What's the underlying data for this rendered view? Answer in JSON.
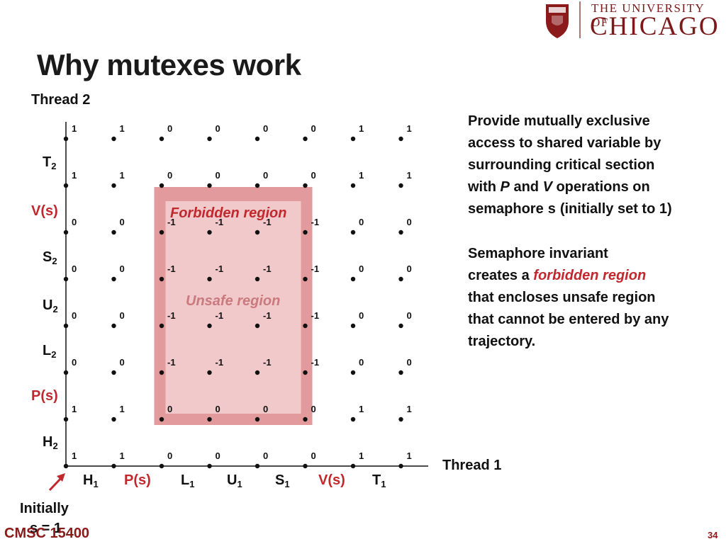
{
  "header": {
    "title": "Why mutexes work",
    "university_top": "THE UNIVERSITY OF",
    "university_main": "CHICAGO"
  },
  "chart_data": {
    "type": "progress_graph",
    "x_axis_label": "Thread 1",
    "y_axis_label": "Thread 2",
    "x_ticks": [
      {
        "base": "H",
        "sub": "1",
        "color": "#111111"
      },
      {
        "base": "P(s)",
        "sub": "",
        "color": "#c0282d"
      },
      {
        "base": "L",
        "sub": "1",
        "color": "#111111"
      },
      {
        "base": "U",
        "sub": "1",
        "color": "#111111"
      },
      {
        "base": "S",
        "sub": "1",
        "color": "#111111"
      },
      {
        "base": "V(s)",
        "sub": "",
        "color": "#c0282d"
      },
      {
        "base": "T",
        "sub": "1",
        "color": "#111111"
      }
    ],
    "y_ticks": [
      {
        "base": "H",
        "sub": "2",
        "color": "#111111"
      },
      {
        "base": "P(s)",
        "sub": "",
        "color": "#c0282d"
      },
      {
        "base": "L",
        "sub": "2",
        "color": "#111111"
      },
      {
        "base": "U",
        "sub": "2",
        "color": "#111111"
      },
      {
        "base": "S",
        "sub": "2",
        "color": "#111111"
      },
      {
        "base": "V(s)",
        "sub": "",
        "color": "#c0282d"
      },
      {
        "base": "T",
        "sub": "2",
        "color": "#111111"
      }
    ],
    "grid_values": [
      [
        "1",
        "1",
        "0",
        "0",
        "0",
        "0",
        "1",
        "1"
      ],
      [
        "1",
        "1",
        "0",
        "0",
        "0",
        "0",
        "1",
        "1"
      ],
      [
        "0",
        "0",
        "-1",
        "-1",
        "-1",
        "-1",
        "0",
        "0"
      ],
      [
        "0",
        "0",
        "-1",
        "-1",
        "-1",
        "-1",
        "0",
        "0"
      ],
      [
        "0",
        "0",
        "-1",
        "-1",
        "-1",
        "-1",
        "0",
        "0"
      ],
      [
        "0",
        "0",
        "-1",
        "-1",
        "-1",
        "-1",
        "0",
        "0"
      ],
      [
        "1",
        "1",
        "0",
        "0",
        "0",
        "0",
        "1",
        "1"
      ],
      [
        "1",
        "1",
        "0",
        "0",
        "0",
        "0",
        "1",
        "1"
      ]
    ],
    "forbidden_region_label": "Forbidden region",
    "unsafe_region_label": "Unsafe region",
    "colors": {
      "forbidden": "#e29a9c",
      "unsafe": "#f2c9ca",
      "accent": "#c0282d"
    }
  },
  "annotation": {
    "initially": "Initially",
    "s_eq": "s = 1"
  },
  "side_text": {
    "p1": [
      "Provide mutually exclusive",
      "access to shared variable by",
      "surrounding critical section"
    ],
    "p1_with": "with ",
    "p1_P": "P",
    "p1_and": " and ",
    "p1_V": "V",
    "p1_ops": " operations on",
    "p1_sem": "semaphore ",
    "p1_s": "s",
    "p1_init": " (initially set to 1)",
    "p2_l1": "Semaphore invariant",
    "p2_creates": "creates a ",
    "p2_forbidden": "forbidden region",
    "p2_l3": "that encloses unsafe region",
    "p2_l4": "that cannot be entered by any",
    "p2_l5": "trajectory."
  },
  "footer": {
    "course": "CMSC 15400",
    "page": "34"
  }
}
